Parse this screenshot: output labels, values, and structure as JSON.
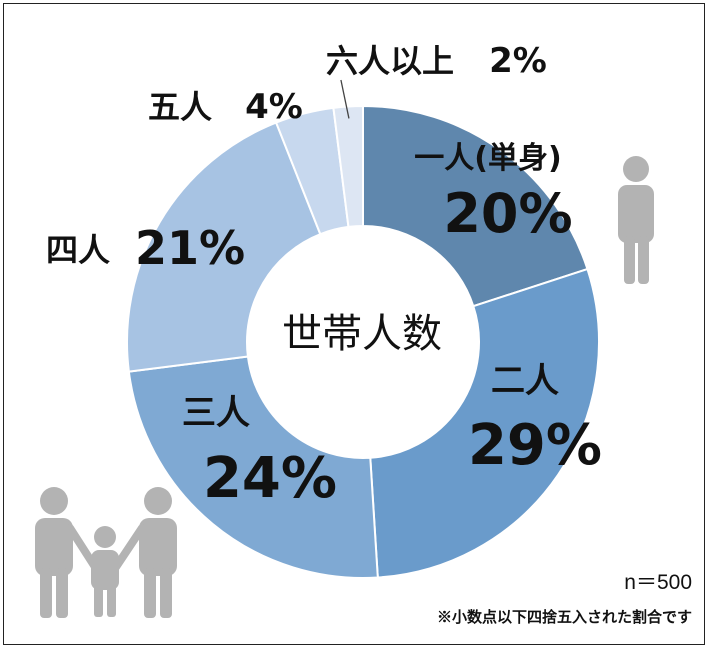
{
  "chart_data": {
    "type": "pie",
    "donut": true,
    "center_title": "世帯人数",
    "categories": [
      "一人(単身)",
      "二人",
      "三人",
      "四人",
      "五人",
      "六人以上"
    ],
    "values": [
      20,
      29,
      24,
      21,
      4,
      2
    ],
    "value_labels": [
      "20%",
      "29%",
      "24%",
      "21%",
      "4%",
      "2%"
    ],
    "unit": "%",
    "colors": [
      "#5f87ad",
      "#6a9bcb",
      "#7fa9d3",
      "#a7c3e3",
      "#c7d8ee",
      "#dde6f3"
    ],
    "start_angle_deg": 0,
    "direction": "clockwise"
  },
  "sample_size": "n＝500",
  "footnote": "※小数点以下四捨五入された割合です",
  "icons": [
    "single-person-icon",
    "family-icon"
  ],
  "icon_color": "#b3b3b3"
}
